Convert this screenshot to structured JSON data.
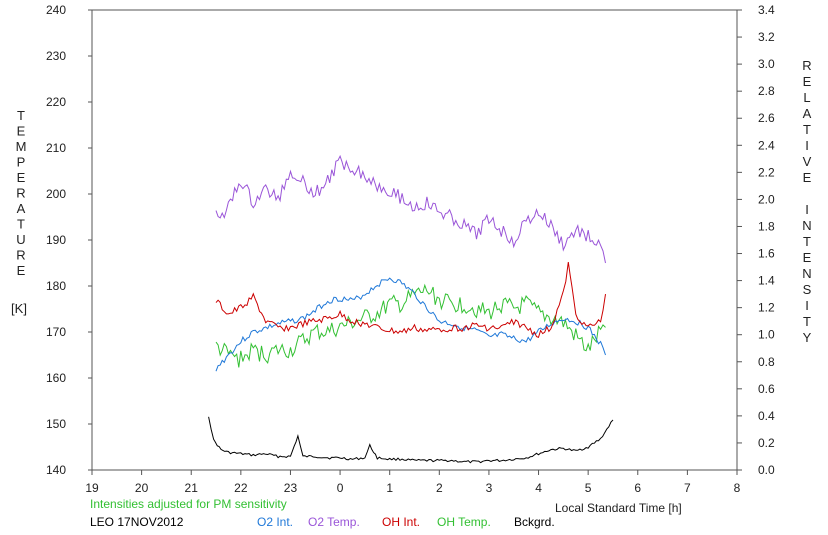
{
  "colors": {
    "o2_int": "#1f78d8",
    "o2_temp": "#9a55d8",
    "oh_int": "#cc0000",
    "oh_temp": "#33c033",
    "bckgrd": "#000000",
    "note": "#33c033"
  },
  "chart_data": {
    "type": "line",
    "title": "",
    "xlabel": "Local Standard Time [h]",
    "ylabel_left": "TEMPERATURE [K]",
    "ylabel_right": "RELATIVE INTENSITY",
    "left_label_letters": [
      "T",
      "E",
      "M",
      "P",
      "E",
      "R",
      "A",
      "T",
      "U",
      "R",
      "E"
    ],
    "left_label_unit": "[K]",
    "right_label_word1": [
      "R",
      "E",
      "L",
      "A",
      "T",
      "I",
      "V",
      "E"
    ],
    "right_label_word2": [
      "I",
      "N",
      "T",
      "E",
      "N",
      "S",
      "I",
      "T",
      "Y"
    ],
    "x_ticks": [
      "19",
      "20",
      "21",
      "22",
      "23",
      "0",
      "1",
      "2",
      "3",
      "4",
      "5",
      "6",
      "7",
      "8"
    ],
    "y_left_ticks": [
      "140",
      "150",
      "160",
      "170",
      "180",
      "190",
      "200",
      "210",
      "220",
      "230",
      "240"
    ],
    "y_right_ticks": [
      "0.0",
      "0.2",
      "0.4",
      "0.6",
      "0.8",
      "1.0",
      "1.2",
      "1.4",
      "1.6",
      "1.8",
      "2.0",
      "2.2",
      "2.4",
      "2.6",
      "2.8",
      "3.0",
      "3.2",
      "3.4"
    ],
    "xlim": [
      19,
      8
    ],
    "ylim_left": [
      140,
      240
    ],
    "ylim_right": [
      0,
      3.4
    ],
    "grid": false,
    "series": [
      {
        "name": "O2 Temp.",
        "axis": "left",
        "x": [
          "21.5",
          "21.75",
          "22",
          "22.25",
          "22.5",
          "22.75",
          "23",
          "23.25",
          "23.5",
          "23.75",
          "0",
          "0.25",
          "0.5",
          "0.75",
          "1",
          "1.25",
          "1.5",
          "1.75",
          "2",
          "2.25",
          "2.5",
          "2.75",
          "3",
          "3.25",
          "3.5",
          "3.75",
          "4",
          "4.25",
          "4.5",
          "4.75",
          "5",
          "5.25",
          "5.35"
        ],
        "y": [
          195,
          197,
          203,
          198,
          201,
          199,
          205,
          203,
          200,
          203,
          207,
          206,
          204,
          202,
          201,
          199,
          197,
          198,
          196,
          195,
          193,
          191,
          195,
          192,
          190,
          194,
          196,
          193,
          189,
          192,
          191,
          188,
          185
        ]
      },
      {
        "name": "O2 Int.",
        "axis": "right",
        "x": [
          "21.5",
          "21.75",
          "22",
          "22.25",
          "22.5",
          "22.75",
          "23",
          "23.25",
          "23.5",
          "23.75",
          "0",
          "0.25",
          "0.5",
          "0.75",
          "1",
          "1.25",
          "1.5",
          "1.75",
          "2",
          "2.25",
          "2.5",
          "2.75",
          "3",
          "3.25",
          "3.5",
          "3.75",
          "4",
          "4.25",
          "4.5",
          "4.75",
          "5",
          "5.25",
          "5.35"
        ],
        "y": [
          0.75,
          0.85,
          0.95,
          1.02,
          1.05,
          1.08,
          1.1,
          1.12,
          1.18,
          1.25,
          1.27,
          1.25,
          1.3,
          1.37,
          1.42,
          1.38,
          1.3,
          1.2,
          1.1,
          1.08,
          1.05,
          1.03,
          0.98,
          1.0,
          0.97,
          0.95,
          1.02,
          1.08,
          1.12,
          1.1,
          1.05,
          0.93,
          0.85
        ]
      },
      {
        "name": "OH Int.",
        "axis": "right",
        "x": [
          "21.5",
          "21.75",
          "22",
          "22.25",
          "22.5",
          "22.75",
          "23",
          "23.25",
          "23.5",
          "23.75",
          "0",
          "0.25",
          "0.5",
          "0.75",
          "1",
          "1.25",
          "1.5",
          "1.75",
          "2",
          "2.25",
          "2.5",
          "2.75",
          "3",
          "3.25",
          "3.5",
          "3.75",
          "4",
          "4.25",
          "4.5",
          "4.6",
          "4.75",
          "5",
          "5.25",
          "5.35"
        ],
        "y": [
          1.25,
          1.15,
          1.2,
          1.28,
          1.1,
          1.05,
          1.05,
          1.08,
          1.1,
          1.12,
          1.15,
          1.1,
          1.08,
          1.05,
          1.03,
          1.02,
          1.05,
          1.03,
          1.04,
          1.05,
          1.05,
          1.07,
          1.05,
          1.05,
          1.1,
          1.05,
          1.0,
          1.05,
          1.3,
          1.52,
          1.15,
          1.05,
          1.1,
          1.3
        ]
      },
      {
        "name": "OH Temp.",
        "axis": "left",
        "x": [
          "21.5",
          "21.75",
          "22",
          "22.25",
          "22.5",
          "22.75",
          "23",
          "23.25",
          "23.5",
          "23.75",
          "0",
          "0.25",
          "0.5",
          "0.75",
          "1",
          "1.25",
          "1.5",
          "1.75",
          "2",
          "2.25",
          "2.5",
          "2.75",
          "3",
          "3.25",
          "3.5",
          "3.75",
          "4",
          "4.25",
          "4.5",
          "4.75",
          "5",
          "5.25",
          "5.35"
        ],
        "y": [
          167,
          165,
          164,
          166,
          165,
          166,
          166,
          168,
          170,
          170,
          171,
          172,
          173,
          174,
          176,
          176,
          178,
          179,
          177,
          176,
          176,
          175,
          174,
          176,
          175,
          176,
          174,
          173,
          172,
          169,
          166,
          170,
          171
        ]
      },
      {
        "name": "Bckgrd.",
        "axis": "right",
        "x": [
          "21.35",
          "21.45",
          "21.6",
          "21.75",
          "22",
          "22.25",
          "22.5",
          "22.75",
          "23",
          "23.15",
          "23.25",
          "23.5",
          "23.75",
          "0",
          "0.25",
          "0.5",
          "0.6",
          "0.75",
          "1",
          "1.25",
          "1.5",
          "1.75",
          "2",
          "2.25",
          "2.5",
          "2.75",
          "3",
          "3.25",
          "3.5",
          "3.75",
          "4",
          "4.25",
          "4.5",
          "4.75",
          "5",
          "5.25",
          "5.5"
        ],
        "y": [
          0.4,
          0.22,
          0.15,
          0.13,
          0.12,
          0.11,
          0.12,
          0.1,
          0.1,
          0.25,
          0.1,
          0.1,
          0.09,
          0.09,
          0.08,
          0.09,
          0.18,
          0.09,
          0.08,
          0.08,
          0.07,
          0.07,
          0.07,
          0.07,
          0.06,
          0.06,
          0.07,
          0.07,
          0.08,
          0.09,
          0.12,
          0.15,
          0.16,
          0.14,
          0.17,
          0.23,
          0.37
        ]
      }
    ]
  },
  "footer": {
    "note": "Intensities adjusted for PM sensitivity",
    "station": "LEO 17NOV2012",
    "legend": [
      "O2 Int.",
      "O2 Temp.",
      "OH Int.",
      "OH Temp.",
      "Bckgrd."
    ]
  }
}
